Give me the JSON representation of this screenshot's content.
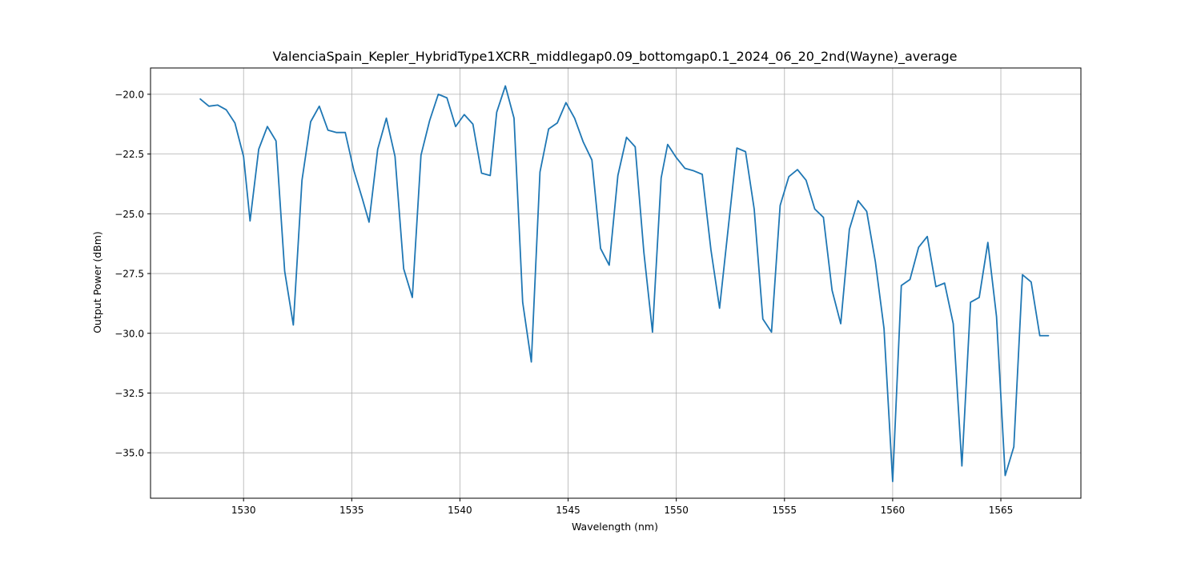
{
  "chart_data": {
    "type": "line",
    "title": "ValenciaSpain_Kepler_HybridType1XCRR_middlegap0.09_bottomgap0.1_2024_06_20_2nd(Wayne)_average",
    "xlabel": "Wavelength (nm)",
    "ylabel": "Output Power (dBm)",
    "xlim": [
      1525.7,
      1568.7
    ],
    "ylim": [
      -36.9,
      -18.9
    ],
    "x_ticks": [
      1530,
      1535,
      1540,
      1545,
      1550,
      1555,
      1560,
      1565
    ],
    "x_tick_labels": [
      "1530",
      "1535",
      "1540",
      "1545",
      "1550",
      "1555",
      "1560",
      "1565"
    ],
    "y_ticks": [
      -35.0,
      -32.5,
      -30.0,
      -27.5,
      -25.0,
      -22.5,
      -20.0
    ],
    "y_tick_labels": [
      "−35.0",
      "−32.5",
      "−30.0",
      "−27.5",
      "−25.0",
      "−22.5",
      "−20.0"
    ],
    "grid": true,
    "legend": false,
    "series": [
      {
        "color": "#1f77b4",
        "x": [
          1528.0,
          1528.4,
          1528.8,
          1529.2,
          1529.6,
          1530.0,
          1530.3,
          1530.7,
          1531.1,
          1531.5,
          1531.9,
          1532.3,
          1532.7,
          1533.1,
          1533.5,
          1533.9,
          1534.3,
          1534.7,
          1535.1,
          1535.5,
          1535.8,
          1536.2,
          1536.6,
          1537.0,
          1537.4,
          1537.8,
          1538.2,
          1538.6,
          1539.0,
          1539.4,
          1539.8,
          1540.2,
          1540.6,
          1541.0,
          1541.4,
          1541.7,
          1542.1,
          1542.5,
          1542.9,
          1543.3,
          1543.7,
          1544.1,
          1544.5,
          1544.9,
          1545.3,
          1545.7,
          1546.1,
          1546.5,
          1546.9,
          1547.3,
          1547.7,
          1548.1,
          1548.5,
          1548.9,
          1549.3,
          1549.6,
          1550.0,
          1550.4,
          1550.8,
          1551.2,
          1551.6,
          1552.0,
          1552.4,
          1552.8,
          1553.2,
          1553.6,
          1554.0,
          1554.4,
          1554.8,
          1555.2,
          1555.6,
          1556.0,
          1556.4,
          1556.8,
          1557.2,
          1557.6,
          1558.0,
          1558.4,
          1558.8,
          1559.2,
          1559.6,
          1560.0,
          1560.4,
          1560.8,
          1561.2,
          1561.6,
          1562.0,
          1562.4,
          1562.8,
          1563.2,
          1563.6,
          1564.0,
          1564.4,
          1564.8,
          1565.2,
          1565.6,
          1566.0,
          1566.4,
          1566.8,
          1567.2
        ],
        "y": [
          -20.2,
          -20.5,
          -20.45,
          -20.65,
          -21.2,
          -22.6,
          -25.3,
          -22.3,
          -21.35,
          -21.95,
          -27.4,
          -29.65,
          -23.6,
          -21.15,
          -20.5,
          -21.5,
          -21.6,
          -21.6,
          -23.2,
          -24.4,
          -25.35,
          -22.3,
          -21.0,
          -22.6,
          -27.3,
          -28.5,
          -22.55,
          -21.1,
          -20.0,
          -20.15,
          -21.35,
          -20.85,
          -21.25,
          -23.3,
          -23.4,
          -20.75,
          -19.65,
          -21.0,
          -28.7,
          -31.2,
          -23.25,
          -21.45,
          -21.2,
          -20.35,
          -21.0,
          -22.0,
          -22.75,
          -26.45,
          -27.15,
          -23.4,
          -21.8,
          -22.2,
          -26.6,
          -29.95,
          -23.5,
          -22.1,
          -22.65,
          -23.1,
          -23.2,
          -23.35,
          -26.5,
          -28.95,
          -25.6,
          -22.25,
          -22.4,
          -24.8,
          -29.4,
          -29.95,
          -24.65,
          -23.45,
          -23.15,
          -23.6,
          -24.8,
          -25.15,
          -28.2,
          -29.6,
          -25.65,
          -24.45,
          -24.9,
          -27.0,
          -29.8,
          -36.2,
          -28.0,
          -27.75,
          -26.4,
          -25.95,
          -28.05,
          -27.9,
          -29.6,
          -35.55,
          -28.7,
          -28.5,
          -26.2,
          -29.3,
          -35.95,
          -34.75,
          -27.55,
          -27.85,
          -30.1,
          -30.1
        ]
      }
    ]
  }
}
